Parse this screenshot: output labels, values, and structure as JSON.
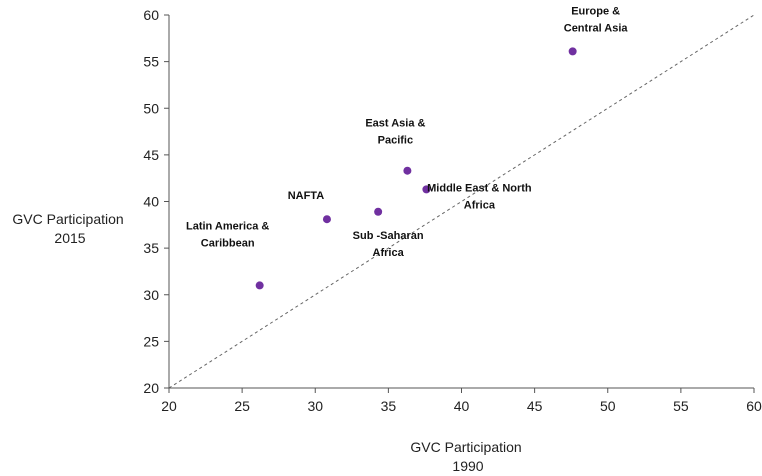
{
  "chart_data": {
    "type": "scatter",
    "xlabel": [
      "GVC Participation",
      "1990"
    ],
    "ylabel": [
      "GVC Participation",
      "2015"
    ],
    "xlim": [
      20,
      60
    ],
    "ylim": [
      20,
      60
    ],
    "xticks": [
      20,
      25,
      30,
      35,
      40,
      45,
      50,
      55,
      60
    ],
    "yticks": [
      20,
      25,
      30,
      35,
      40,
      45,
      50,
      55,
      60
    ],
    "grid": false,
    "reference_line": {
      "style": "dashed",
      "from": [
        20,
        20
      ],
      "to": [
        60,
        60
      ]
    },
    "marker_color": "#7030a0",
    "points": [
      {
        "x": 26.2,
        "y": 31.0,
        "label": [
          "Latin America &",
          "Caribbean"
        ],
        "label_pos": "above-left"
      },
      {
        "x": 30.8,
        "y": 38.1,
        "label": [
          "NAFTA"
        ],
        "label_pos": "above-left"
      },
      {
        "x": 34.3,
        "y": 38.9,
        "label": [
          "Sub -Saharan",
          "Africa"
        ],
        "label_pos": "below"
      },
      {
        "x": 36.3,
        "y": 43.3,
        "label": [
          "East Asia &",
          "Pacific"
        ],
        "label_pos": "above"
      },
      {
        "x": 37.6,
        "y": 41.3,
        "label": [
          "Middle East & North",
          "Africa"
        ],
        "label_pos": "right"
      },
      {
        "x": 47.6,
        "y": 56.1,
        "label": [
          "Europe &",
          "Central Asia"
        ],
        "label_pos": "above-right"
      }
    ]
  }
}
